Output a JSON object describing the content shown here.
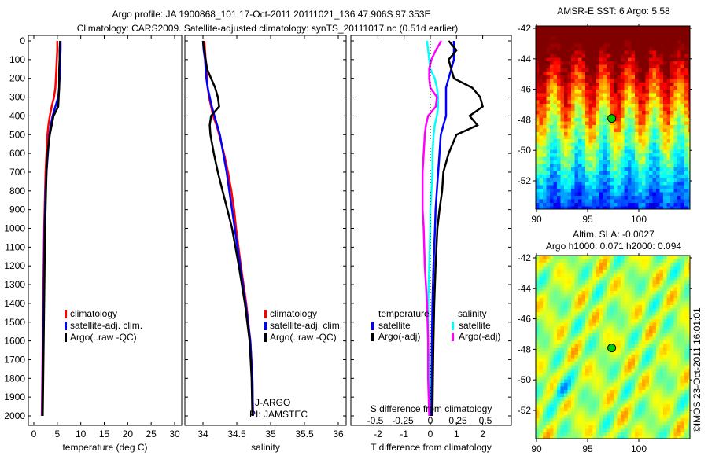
{
  "header": {
    "line1": "Argo profile: JA 1900868_101 17-Oct-2011 20111021_136 47.906S 97.353E",
    "line2": "Climatology: CARS2009. Satellite-adjusted climatology: synTS_20111017.nc (0.51d earlier)"
  },
  "footer": {
    "credit": "©IMOS 23-Oct-2011 16:01:01"
  },
  "colors": {
    "climatology": "#ff0000",
    "satellite": "#0000ff",
    "argo": "#000000",
    "sal_satellite": "#00ffff",
    "sal_argo": "#ff00ff"
  },
  "chart_data": [
    {
      "type": "line",
      "name": "temperature",
      "xlabel": "temperature (deg C)",
      "xlim": [
        -1,
        31
      ],
      "xticks": [
        "0",
        "5",
        "10",
        "15",
        "20",
        "25",
        "30"
      ],
      "ylim": [
        0,
        2050
      ],
      "yticks": [
        "0",
        "100",
        "200",
        "300",
        "400",
        "500",
        "600",
        "700",
        "800",
        "900",
        "1000",
        "1100",
        "1200",
        "1300",
        "1400",
        "1500",
        "1600",
        "1700",
        "1800",
        "1900",
        "2000"
      ],
      "depth": [
        0,
        50,
        100,
        150,
        200,
        250,
        300,
        350,
        400,
        450,
        500,
        600,
        700,
        800,
        900,
        1000,
        1200,
        1400,
        1600,
        1800,
        2000
      ],
      "legend": [
        "climatology",
        "satellite-adj. clim.",
        "Argo(..raw -QC)"
      ],
      "series": [
        {
          "name": "climatology",
          "values": [
            5.0,
            5.0,
            4.9,
            4.8,
            4.7,
            4.6,
            4.3,
            3.8,
            3.4,
            3.1,
            2.9,
            2.7,
            2.5,
            2.4,
            2.3,
            2.2,
            2.1,
            2.0,
            1.9,
            1.8,
            1.7
          ]
        },
        {
          "name": "satellite-adj. clim.",
          "values": [
            5.7,
            5.7,
            5.6,
            5.6,
            5.5,
            5.4,
            5.2,
            4.6,
            4.0,
            3.6,
            3.3,
            3.0,
            2.7,
            2.5,
            2.4,
            2.3,
            2.2,
            2.1,
            2.0,
            1.9,
            1.8
          ]
        },
        {
          "name": "Argo(..raw -QC)",
          "values": [
            5.6,
            5.5,
            5.5,
            5.4,
            5.4,
            5.4,
            5.3,
            5.2,
            4.2,
            3.8,
            3.4,
            2.9,
            2.7,
            2.6,
            2.5,
            2.4,
            2.3,
            2.2,
            2.1,
            2.0,
            1.9
          ]
        }
      ]
    },
    {
      "type": "line",
      "name": "salinity",
      "xlabel": "salinity",
      "xlim": [
        33.87,
        36.05
      ],
      "xticks": [
        "34",
        "34.5",
        "35",
        "35.5",
        "36"
      ],
      "ylim": [
        0,
        2050
      ],
      "depth": [
        0,
        50,
        100,
        150,
        200,
        250,
        300,
        350,
        400,
        450,
        500,
        600,
        700,
        800,
        900,
        1000,
        1200,
        1400,
        1600,
        1800,
        2000
      ],
      "legend": [
        "climatology",
        "satellite-adj. clim.",
        "Argo(..raw -QC)"
      ],
      "annotations": [
        "J-ARGO",
        "PI: JAMSTEC"
      ],
      "series": [
        {
          "name": "climatology",
          "values": [
            34.02,
            34.03,
            34.04,
            34.05,
            34.06,
            34.07,
            34.09,
            34.12,
            34.15,
            34.2,
            34.24,
            34.31,
            34.37,
            34.42,
            34.46,
            34.49,
            34.56,
            34.64,
            34.7,
            34.73,
            34.74
          ]
        },
        {
          "name": "satellite-adj. clim.",
          "values": [
            34.0,
            34.01,
            34.03,
            34.04,
            34.05,
            34.07,
            34.1,
            34.13,
            34.17,
            34.21,
            34.25,
            34.3,
            34.35,
            34.39,
            34.43,
            34.47,
            34.55,
            34.63,
            34.7,
            34.73,
            34.74
          ]
        },
        {
          "name": "Argo(..raw -QC)",
          "values": [
            34.0,
            34.02,
            34.04,
            34.06,
            34.12,
            34.18,
            34.22,
            34.24,
            34.12,
            34.1,
            34.11,
            34.16,
            34.22,
            34.29,
            34.36,
            34.43,
            34.53,
            34.62,
            34.69,
            34.72,
            34.73
          ]
        }
      ]
    },
    {
      "type": "line",
      "name": "difference",
      "xlabel": "T difference from climatology",
      "xlabel2": "S difference from climatology",
      "xlim": [
        -3,
        3.1
      ],
      "xticks": [
        "-2",
        "-1",
        "0",
        "1",
        "2"
      ],
      "xticks2": [
        "-0.5",
        "-0.25",
        "0",
        "0.25",
        "0.5"
      ],
      "ylim": [
        0,
        2050
      ],
      "depth": [
        0,
        50,
        100,
        150,
        200,
        250,
        300,
        350,
        400,
        450,
        500,
        600,
        700,
        800,
        900,
        1000,
        1200,
        1400,
        1600,
        1800,
        2000
      ],
      "legend_titles": [
        "temperature",
        "salinity"
      ],
      "legend": [
        "satellite",
        "Argo(-adj)",
        "satellite",
        "Argo(-adj)"
      ],
      "series": [
        {
          "name": "T satellite",
          "unit": "T",
          "values": [
            0.9,
            0.9,
            0.9,
            0.8,
            0.7,
            0.6,
            0.6,
            0.6,
            0.6,
            0.5,
            0.4,
            0.35,
            0.3,
            0.25,
            0.2,
            0.18,
            0.12,
            0.08,
            0.06,
            0.05,
            0.04
          ]
        },
        {
          "name": "T Argo(-adj)",
          "values": [
            0.7,
            1.0,
            0.7,
            0.8,
            0.9,
            1.6,
            1.9,
            2.0,
            1.5,
            1.8,
            1.0,
            0.7,
            0.5,
            0.45,
            0.35,
            0.27,
            0.2,
            0.15,
            0.12,
            0.1,
            0.08
          ],
          "unit": "T"
        },
        {
          "name": "S satellite",
          "unit": "S",
          "values": [
            -0.03,
            -0.02,
            -0.01,
            0.0,
            0.04,
            0.06,
            0.07,
            0.07,
            0.06,
            0.04,
            0.03,
            0.02,
            0.02,
            0.01,
            0.0,
            0.0,
            -0.01,
            -0.02,
            -0.02,
            -0.01,
            -0.01
          ]
        },
        {
          "name": "S Argo(-adj)",
          "unit": "S",
          "values": [
            0.1,
            0.05,
            0.01,
            -0.01,
            -0.01,
            0.0,
            0.06,
            0.05,
            -0.02,
            -0.04,
            -0.05,
            -0.06,
            -0.07,
            -0.07,
            -0.07,
            -0.06,
            -0.05,
            -0.03,
            -0.02,
            -0.02,
            -0.01
          ]
        }
      ]
    },
    {
      "type": "heatmap",
      "name": "sst-map",
      "title": "AMSR-E SST: 6 Argo: 5.58",
      "xlim": [
        89.8,
        104.8
      ],
      "ylim": [
        -53.8,
        -41.8
      ],
      "xticks": [
        "90",
        "95",
        "100"
      ],
      "yticks": [
        "-42",
        "-44",
        "-46",
        "-48",
        "-50",
        "-52"
      ],
      "marker": {
        "lon": 97.353,
        "lat": -47.906
      }
    },
    {
      "type": "heatmap",
      "name": "sla-map",
      "title": "Altim. SLA: -0.0027",
      "subtitle": "Argo h1000: 0.071 h2000: 0.094",
      "xlim": [
        89.8,
        104.8
      ],
      "ylim": [
        -53.8,
        -41.8
      ],
      "xticks": [
        "90",
        "95",
        "100"
      ],
      "yticks": [
        "-42",
        "-44",
        "-46",
        "-48",
        "-50",
        "-52"
      ],
      "marker": {
        "lon": 97.353,
        "lat": -47.906
      }
    }
  ]
}
